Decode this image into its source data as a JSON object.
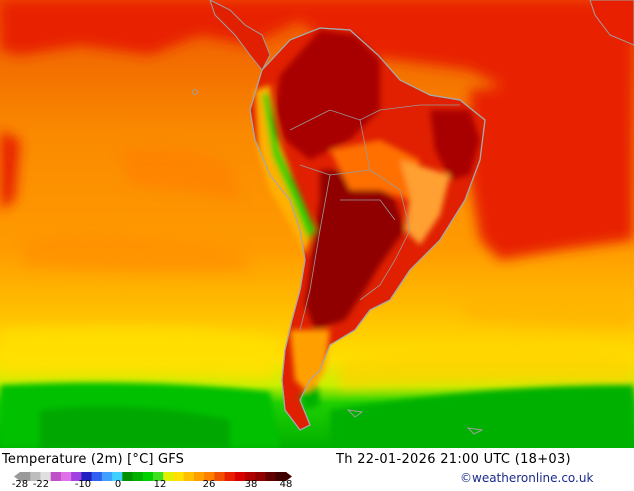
{
  "map": {
    "title": "Temperature (2m) [°C] GFS",
    "datetime": "Th 22-01-2026 21:00 UTC (18+03)",
    "credit": "©weatheronline.co.uk"
  },
  "legend": {
    "ticks": [
      "-28",
      "-22",
      "-10",
      "0",
      "12",
      "26",
      "38",
      "48"
    ],
    "stops": [
      {
        "value": -28,
        "color": "#9a9a9a"
      },
      {
        "value": -25,
        "color": "#bdbdbd"
      },
      {
        "value": -22,
        "color": "#e0e0e0"
      },
      {
        "value": -19,
        "color": "#c050c8"
      },
      {
        "value": -16,
        "color": "#e070e8"
      },
      {
        "value": -13,
        "color": "#a040e0"
      },
      {
        "value": -10,
        "color": "#2020c0"
      },
      {
        "value": -7,
        "color": "#3060f0"
      },
      {
        "value": -4,
        "color": "#40a0ff"
      },
      {
        "value": -1,
        "color": "#40d0ff"
      },
      {
        "value": 2,
        "color": "#009000"
      },
      {
        "value": 5,
        "color": "#00b000"
      },
      {
        "value": 8,
        "color": "#00d000"
      },
      {
        "value": 11,
        "color": "#40e020"
      },
      {
        "value": 14,
        "color": "#e0f000"
      },
      {
        "value": 17,
        "color": "#ffe000"
      },
      {
        "value": 20,
        "color": "#ffc000"
      },
      {
        "value": 23,
        "color": "#ffa000"
      },
      {
        "value": 26,
        "color": "#ff8000"
      },
      {
        "value": 29,
        "color": "#f05000"
      },
      {
        "value": 32,
        "color": "#e82000"
      },
      {
        "value": 35,
        "color": "#d80000"
      },
      {
        "value": 38,
        "color": "#b00000"
      },
      {
        "value": 41,
        "color": "#900000"
      },
      {
        "value": 44,
        "color": "#600000"
      },
      {
        "value": 48,
        "color": "#400000"
      }
    ]
  }
}
